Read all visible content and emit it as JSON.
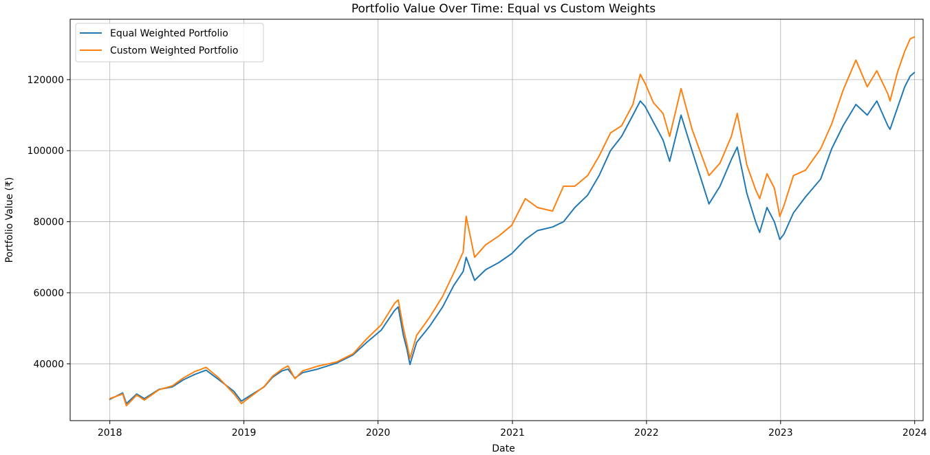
{
  "chart_data": {
    "type": "line",
    "title": "Portfolio Value Over Time: Equal vs Custom Weights",
    "xlabel": "Date",
    "ylabel": "Portfolio Value (₹)",
    "xlim": [
      "2017-09-15",
      "2024-01-24"
    ],
    "ylim": [
      24000,
      137000
    ],
    "x_ticks": [
      "2018",
      "2019",
      "2020",
      "2021",
      "2022",
      "2023",
      "2024"
    ],
    "y_ticks": [
      40000,
      60000,
      80000,
      100000,
      120000
    ],
    "y_tick_labels": [
      "40000",
      "60000",
      "80000",
      "100000",
      "120000"
    ],
    "grid": true,
    "legend_position": "top-left",
    "series": [
      {
        "name": "Equal Weighted Portfolio",
        "color": "#1f77b4",
        "points": [
          [
            "2018-01-01",
            30000
          ],
          [
            "2018-02-05",
            31800
          ],
          [
            "2018-02-15",
            28800
          ],
          [
            "2018-03-15",
            31500
          ],
          [
            "2018-04-05",
            30200
          ],
          [
            "2018-05-15",
            32800
          ],
          [
            "2018-06-20",
            33500
          ],
          [
            "2018-07-20",
            35500
          ],
          [
            "2018-08-20",
            37000
          ],
          [
            "2018-09-20",
            38200
          ],
          [
            "2018-10-25",
            35500
          ],
          [
            "2018-12-05",
            32200
          ],
          [
            "2018-12-25",
            29500
          ],
          [
            "2019-01-25",
            31500
          ],
          [
            "2019-02-25",
            33500
          ],
          [
            "2019-03-20",
            36200
          ],
          [
            "2019-04-15",
            38000
          ],
          [
            "2019-05-01",
            38500
          ],
          [
            "2019-05-20",
            36000
          ],
          [
            "2019-06-10",
            37500
          ],
          [
            "2019-07-20",
            38500
          ],
          [
            "2019-09-10",
            40200
          ],
          [
            "2019-10-25",
            42500
          ],
          [
            "2019-12-01",
            46000
          ],
          [
            "2020-01-10",
            49500
          ],
          [
            "2020-02-15",
            55000
          ],
          [
            "2020-02-25",
            56000
          ],
          [
            "2020-03-10",
            48000
          ],
          [
            "2020-03-20",
            44000
          ],
          [
            "2020-03-28",
            39800
          ],
          [
            "2020-04-15",
            46000
          ],
          [
            "2020-05-20",
            50500
          ],
          [
            "2020-06-25",
            56000
          ],
          [
            "2020-07-25",
            62000
          ],
          [
            "2020-08-20",
            66000
          ],
          [
            "2020-08-28",
            70000
          ],
          [
            "2020-09-20",
            63500
          ],
          [
            "2020-10-20",
            66500
          ],
          [
            "2020-11-25",
            68500
          ],
          [
            "2020-12-30",
            71000
          ],
          [
            "2021-02-05",
            75000
          ],
          [
            "2021-03-10",
            77500
          ],
          [
            "2021-04-20",
            78500
          ],
          [
            "2021-05-20",
            80000
          ],
          [
            "2021-06-20",
            84000
          ],
          [
            "2021-07-25",
            87500
          ],
          [
            "2021-08-25",
            93000
          ],
          [
            "2021-09-25",
            100000
          ],
          [
            "2021-10-25",
            104000
          ],
          [
            "2021-11-25",
            110000
          ],
          [
            "2021-12-15",
            114000
          ],
          [
            "2021-12-28",
            112500
          ],
          [
            "2022-01-20",
            108000
          ],
          [
            "2022-02-15",
            103000
          ],
          [
            "2022-03-05",
            97000
          ],
          [
            "2022-04-05",
            110000
          ],
          [
            "2022-05-05",
            100000
          ],
          [
            "2022-06-20",
            85000
          ],
          [
            "2022-07-20",
            90000
          ],
          [
            "2022-08-20",
            97500
          ],
          [
            "2022-09-05",
            101000
          ],
          [
            "2022-10-01",
            88000
          ],
          [
            "2022-10-25",
            80000
          ],
          [
            "2022-11-05",
            77000
          ],
          [
            "2022-11-25",
            84000
          ],
          [
            "2022-12-15",
            80000
          ],
          [
            "2022-12-30",
            75000
          ],
          [
            "2023-01-10",
            76500
          ],
          [
            "2023-02-05",
            82500
          ],
          [
            "2023-03-10",
            87000
          ],
          [
            "2023-04-20",
            92000
          ],
          [
            "2023-05-20",
            100500
          ],
          [
            "2023-06-20",
            107000
          ],
          [
            "2023-07-25",
            113000
          ],
          [
            "2023-08-25",
            110000
          ],
          [
            "2023-09-20",
            114000
          ],
          [
            "2023-10-20",
            107000
          ],
          [
            "2023-10-26",
            106000
          ],
          [
            "2023-11-15",
            112000
          ],
          [
            "2023-12-05",
            118000
          ],
          [
            "2023-12-20",
            121000
          ],
          [
            "2023-12-31",
            122000
          ]
        ]
      },
      {
        "name": "Custom Weighted Portfolio",
        "color": "#ff7f0e",
        "points": [
          [
            "2018-01-01",
            30200
          ],
          [
            "2018-02-05",
            31500
          ],
          [
            "2018-02-15",
            28200
          ],
          [
            "2018-03-15",
            31200
          ],
          [
            "2018-04-05",
            29800
          ],
          [
            "2018-05-15",
            32700
          ],
          [
            "2018-06-20",
            33800
          ],
          [
            "2018-07-20",
            36000
          ],
          [
            "2018-08-20",
            37800
          ],
          [
            "2018-09-20",
            39000
          ],
          [
            "2018-10-25",
            36000
          ],
          [
            "2018-12-05",
            31500
          ],
          [
            "2018-12-25",
            28800
          ],
          [
            "2019-01-25",
            31200
          ],
          [
            "2019-02-25",
            33600
          ],
          [
            "2019-03-20",
            36500
          ],
          [
            "2019-04-15",
            38500
          ],
          [
            "2019-05-01",
            39400
          ],
          [
            "2019-05-20",
            35800
          ],
          [
            "2019-06-10",
            38000
          ],
          [
            "2019-07-20",
            39300
          ],
          [
            "2019-09-10",
            40500
          ],
          [
            "2019-10-25",
            42800
          ],
          [
            "2019-12-01",
            47000
          ],
          [
            "2020-01-10",
            51000
          ],
          [
            "2020-02-15",
            57000
          ],
          [
            "2020-02-25",
            58000
          ],
          [
            "2020-03-10",
            50000
          ],
          [
            "2020-03-20",
            45500
          ],
          [
            "2020-03-28",
            41500
          ],
          [
            "2020-04-15",
            48000
          ],
          [
            "2020-05-20",
            53000
          ],
          [
            "2020-06-25",
            59000
          ],
          [
            "2020-07-25",
            65500
          ],
          [
            "2020-08-20",
            71500
          ],
          [
            "2020-08-28",
            81500
          ],
          [
            "2020-09-20",
            70000
          ],
          [
            "2020-10-20",
            73500
          ],
          [
            "2020-11-25",
            76000
          ],
          [
            "2020-12-30",
            79000
          ],
          [
            "2021-02-05",
            86500
          ],
          [
            "2021-03-10",
            84000
          ],
          [
            "2021-04-20",
            83000
          ],
          [
            "2021-05-20",
            90000
          ],
          [
            "2021-06-20",
            90000
          ],
          [
            "2021-07-25",
            93000
          ],
          [
            "2021-08-25",
            98500
          ],
          [
            "2021-09-25",
            105000
          ],
          [
            "2021-10-25",
            107000
          ],
          [
            "2021-11-25",
            113000
          ],
          [
            "2021-12-15",
            121500
          ],
          [
            "2021-12-28",
            119000
          ],
          [
            "2022-01-20",
            113500
          ],
          [
            "2022-02-15",
            110500
          ],
          [
            "2022-03-05",
            104000
          ],
          [
            "2022-04-05",
            117500
          ],
          [
            "2022-05-05",
            106000
          ],
          [
            "2022-06-20",
            93000
          ],
          [
            "2022-07-20",
            96500
          ],
          [
            "2022-08-20",
            104000
          ],
          [
            "2022-09-05",
            110500
          ],
          [
            "2022-10-01",
            96000
          ],
          [
            "2022-10-25",
            89000
          ],
          [
            "2022-11-05",
            86500
          ],
          [
            "2022-11-25",
            93500
          ],
          [
            "2022-12-15",
            89500
          ],
          [
            "2022-12-30",
            81500
          ],
          [
            "2023-01-10",
            84500
          ],
          [
            "2023-02-05",
            93000
          ],
          [
            "2023-03-10",
            94500
          ],
          [
            "2023-04-20",
            100500
          ],
          [
            "2023-05-20",
            107500
          ],
          [
            "2023-06-20",
            117000
          ],
          [
            "2023-07-25",
            125500
          ],
          [
            "2023-08-25",
            118000
          ],
          [
            "2023-09-20",
            122500
          ],
          [
            "2023-10-20",
            116000
          ],
          [
            "2023-10-26",
            114000
          ],
          [
            "2023-11-15",
            122000
          ],
          [
            "2023-12-05",
            128000
          ],
          [
            "2023-12-20",
            131500
          ],
          [
            "2023-12-31",
            132000
          ]
        ]
      }
    ]
  }
}
